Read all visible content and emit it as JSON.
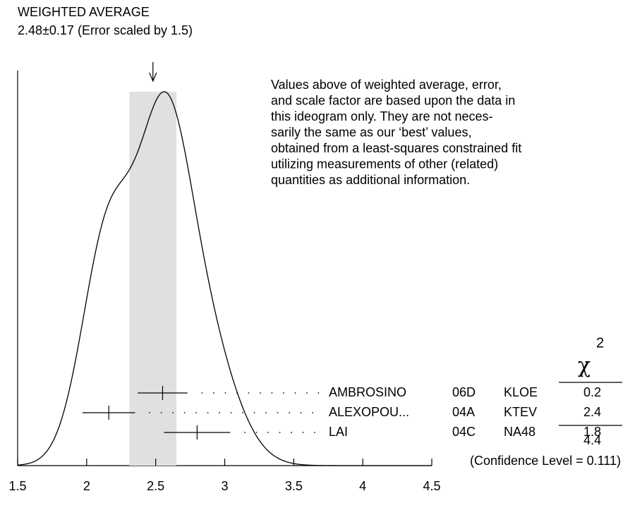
{
  "chart_data": {
    "type": "ideogram",
    "title": "WEIGHTED AVERAGE",
    "subtitle": "2.48±0.17 (Error scaled by 1.5)",
    "average": 2.48,
    "average_error": 0.17,
    "note": [
      "Values above of weighted average, error,",
      "and scale factor are based upon the data in",
      "this ideogram only.  They are not neces-",
      "sarily the same as our ‘best’ values,",
      "obtained from a least-squares constrained fit",
      "utilizing measurements of other (related)",
      "quantities as additional information."
    ],
    "chi_symbol": "χ",
    "chi_power": "2",
    "measurements": [
      {
        "name": "AMBROSINO",
        "code": "06D",
        "experiment": "KLOE",
        "value": 2.55,
        "error": 0.18,
        "chi2": 0.2
      },
      {
        "name": "ALEXOPOU...",
        "code": "04A",
        "experiment": "KTEV",
        "value": 2.16,
        "error": 0.19,
        "chi2": 2.4
      },
      {
        "name": "LAI",
        "code": "04C",
        "experiment": "NA48",
        "value": 2.8,
        "error": 0.24,
        "chi2": 1.8
      }
    ],
    "chi2_total": 4.4,
    "confidence": "(Confidence Level = 0.111)",
    "xlim": [
      1.5,
      4.5
    ],
    "xticks": [
      1.5,
      2,
      2.5,
      3,
      3.5,
      4,
      4.5
    ]
  }
}
